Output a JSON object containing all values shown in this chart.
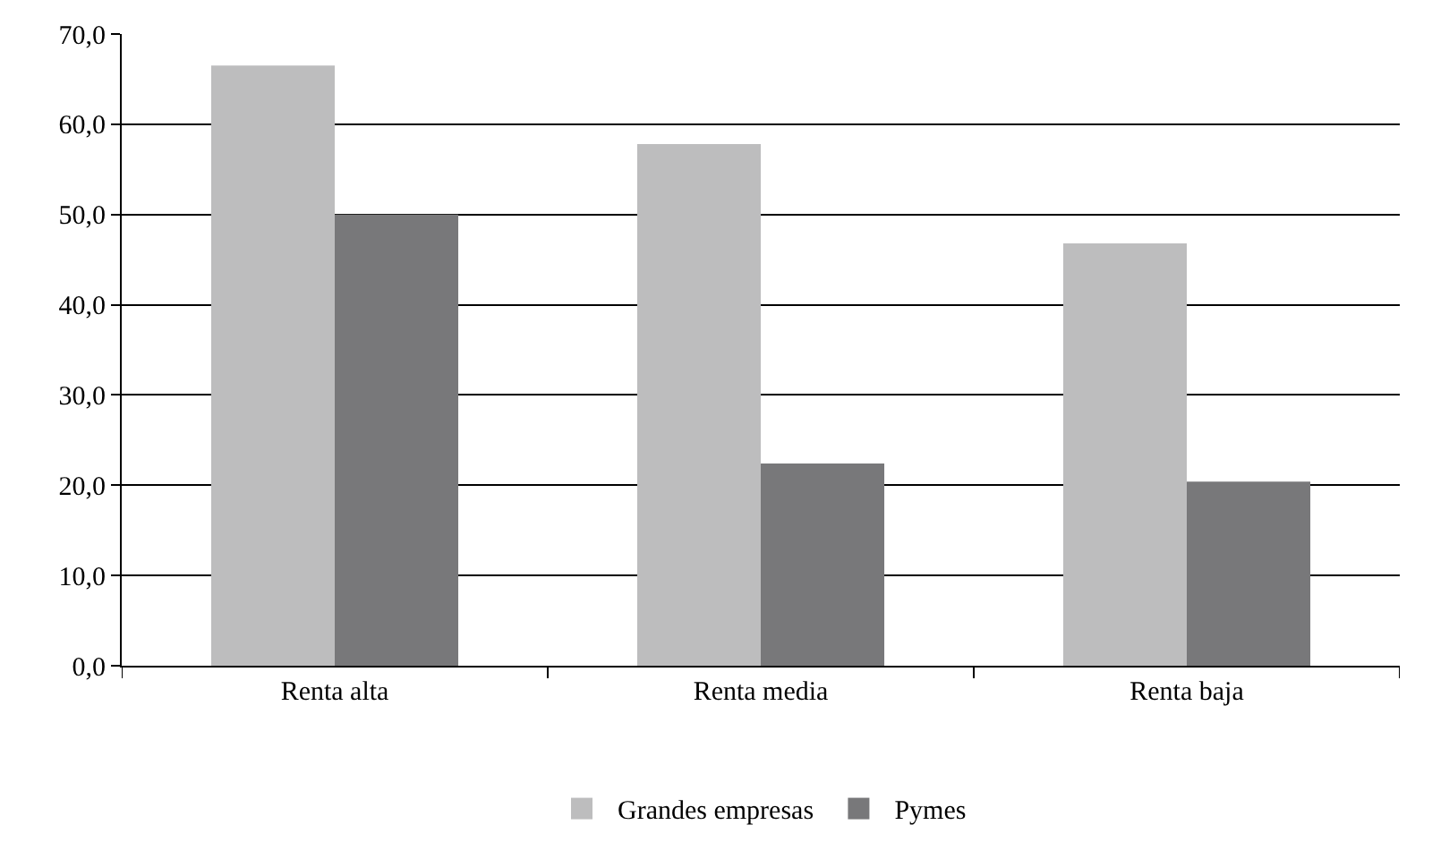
{
  "chart_data": {
    "type": "bar",
    "categories": [
      "Renta alta",
      "Renta media",
      "Renta baja"
    ],
    "series": [
      {
        "name": "Grandes empresas",
        "color": "#bdbdbe",
        "values": [
          66.5,
          57.8,
          46.8
        ]
      },
      {
        "name": "Pymes",
        "color": "#78787a",
        "values": [
          50.0,
          22.4,
          20.4
        ]
      }
    ],
    "ylim": [
      0,
      70
    ],
    "yticks": [
      {
        "value": 0,
        "label": "0,0"
      },
      {
        "value": 10,
        "label": "10,0"
      },
      {
        "value": 20,
        "label": "20,0"
      },
      {
        "value": 30,
        "label": "30,0"
      },
      {
        "value": 40,
        "label": "40,0"
      },
      {
        "value": 50,
        "label": "50,0"
      },
      {
        "value": 60,
        "label": "60,0"
      },
      {
        "value": 70,
        "label": "70,0"
      }
    ],
    "grid": "y",
    "legend": "bottom"
  }
}
